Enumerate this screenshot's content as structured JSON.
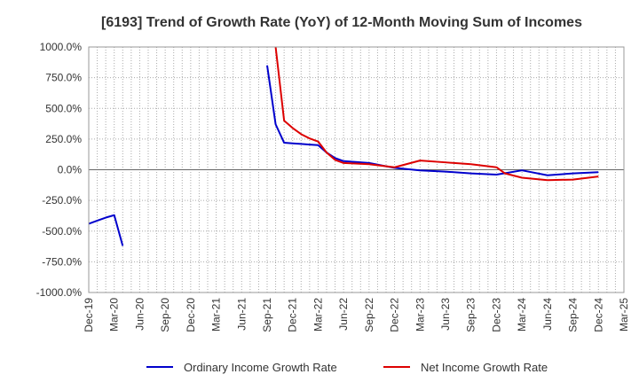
{
  "chart_data": {
    "type": "line",
    "title": "[6193]  Trend of Growth Rate (YoY) of 12-Month Moving Sum of Incomes",
    "xlabel": "",
    "ylabel": "",
    "ylim": [
      -1000,
      1000
    ],
    "y_ticks": [
      "1000.0%",
      "750.0%",
      "500.0%",
      "250.0%",
      "0.0%",
      "-250.0%",
      "-500.0%",
      "-750.0%",
      "-1000.0%"
    ],
    "y_tick_values": [
      1000,
      750,
      500,
      250,
      0,
      -250,
      -500,
      -750,
      -1000
    ],
    "x_tick_labels": [
      "Dec-19",
      "Mar-20",
      "Jun-20",
      "Sep-20",
      "Dec-20",
      "Mar-21",
      "Jun-21",
      "Sep-21",
      "Dec-21",
      "Mar-22",
      "Jun-22",
      "Sep-22",
      "Dec-22",
      "Mar-23",
      "Jun-23",
      "Sep-23",
      "Dec-23",
      "Mar-24",
      "Jun-24",
      "Sep-24",
      "Dec-24",
      "Mar-25"
    ],
    "grid": true,
    "legend_position": "bottom",
    "series": [
      {
        "name": "Ordinary Income Growth Rate",
        "color": "#0000cc",
        "segments": [
          [
            [
              "2019-12",
              -440
            ],
            [
              "2020-01",
              -415
            ],
            [
              "2020-02",
              -390
            ],
            [
              "2020-03",
              -370
            ],
            [
              "2020-04",
              -620
            ]
          ],
          [
            [
              "2021-09",
              850
            ],
            [
              "2021-10",
              370
            ],
            [
              "2021-11",
              220
            ],
            [
              "2021-12",
              215
            ],
            [
              "2022-01",
              210
            ],
            [
              "2022-02",
              205
            ],
            [
              "2022-03",
              200
            ],
            [
              "2022-04",
              140
            ],
            [
              "2022-05",
              95
            ],
            [
              "2022-06",
              70
            ],
            [
              "2022-09",
              55
            ],
            [
              "2022-12",
              15
            ],
            [
              "2023-03",
              -5
            ],
            [
              "2023-06",
              -15
            ],
            [
              "2023-09",
              -30
            ],
            [
              "2023-12",
              -40
            ],
            [
              "2024-03",
              -5
            ],
            [
              "2024-06",
              -45
            ],
            [
              "2024-09",
              -30
            ],
            [
              "2024-12",
              -20
            ]
          ]
        ]
      },
      {
        "name": "Net Income Growth Rate",
        "color": "#dd0000",
        "segments": [
          [
            [
              "2021-10",
              1000
            ],
            [
              "2021-11",
              400
            ],
            [
              "2021-12",
              340
            ],
            [
              "2022-01",
              290
            ],
            [
              "2022-02",
              255
            ],
            [
              "2022-03",
              230
            ],
            [
              "2022-04",
              140
            ],
            [
              "2022-05",
              80
            ],
            [
              "2022-06",
              55
            ],
            [
              "2022-09",
              45
            ],
            [
              "2022-12",
              20
            ],
            [
              "2023-03",
              75
            ],
            [
              "2023-06",
              60
            ],
            [
              "2023-09",
              45
            ],
            [
              "2023-12",
              20
            ],
            [
              "2024-01",
              -30
            ],
            [
              "2024-03",
              -65
            ],
            [
              "2024-06",
              -85
            ],
            [
              "2024-09",
              -80
            ],
            [
              "2024-12",
              -55
            ]
          ]
        ]
      }
    ]
  }
}
